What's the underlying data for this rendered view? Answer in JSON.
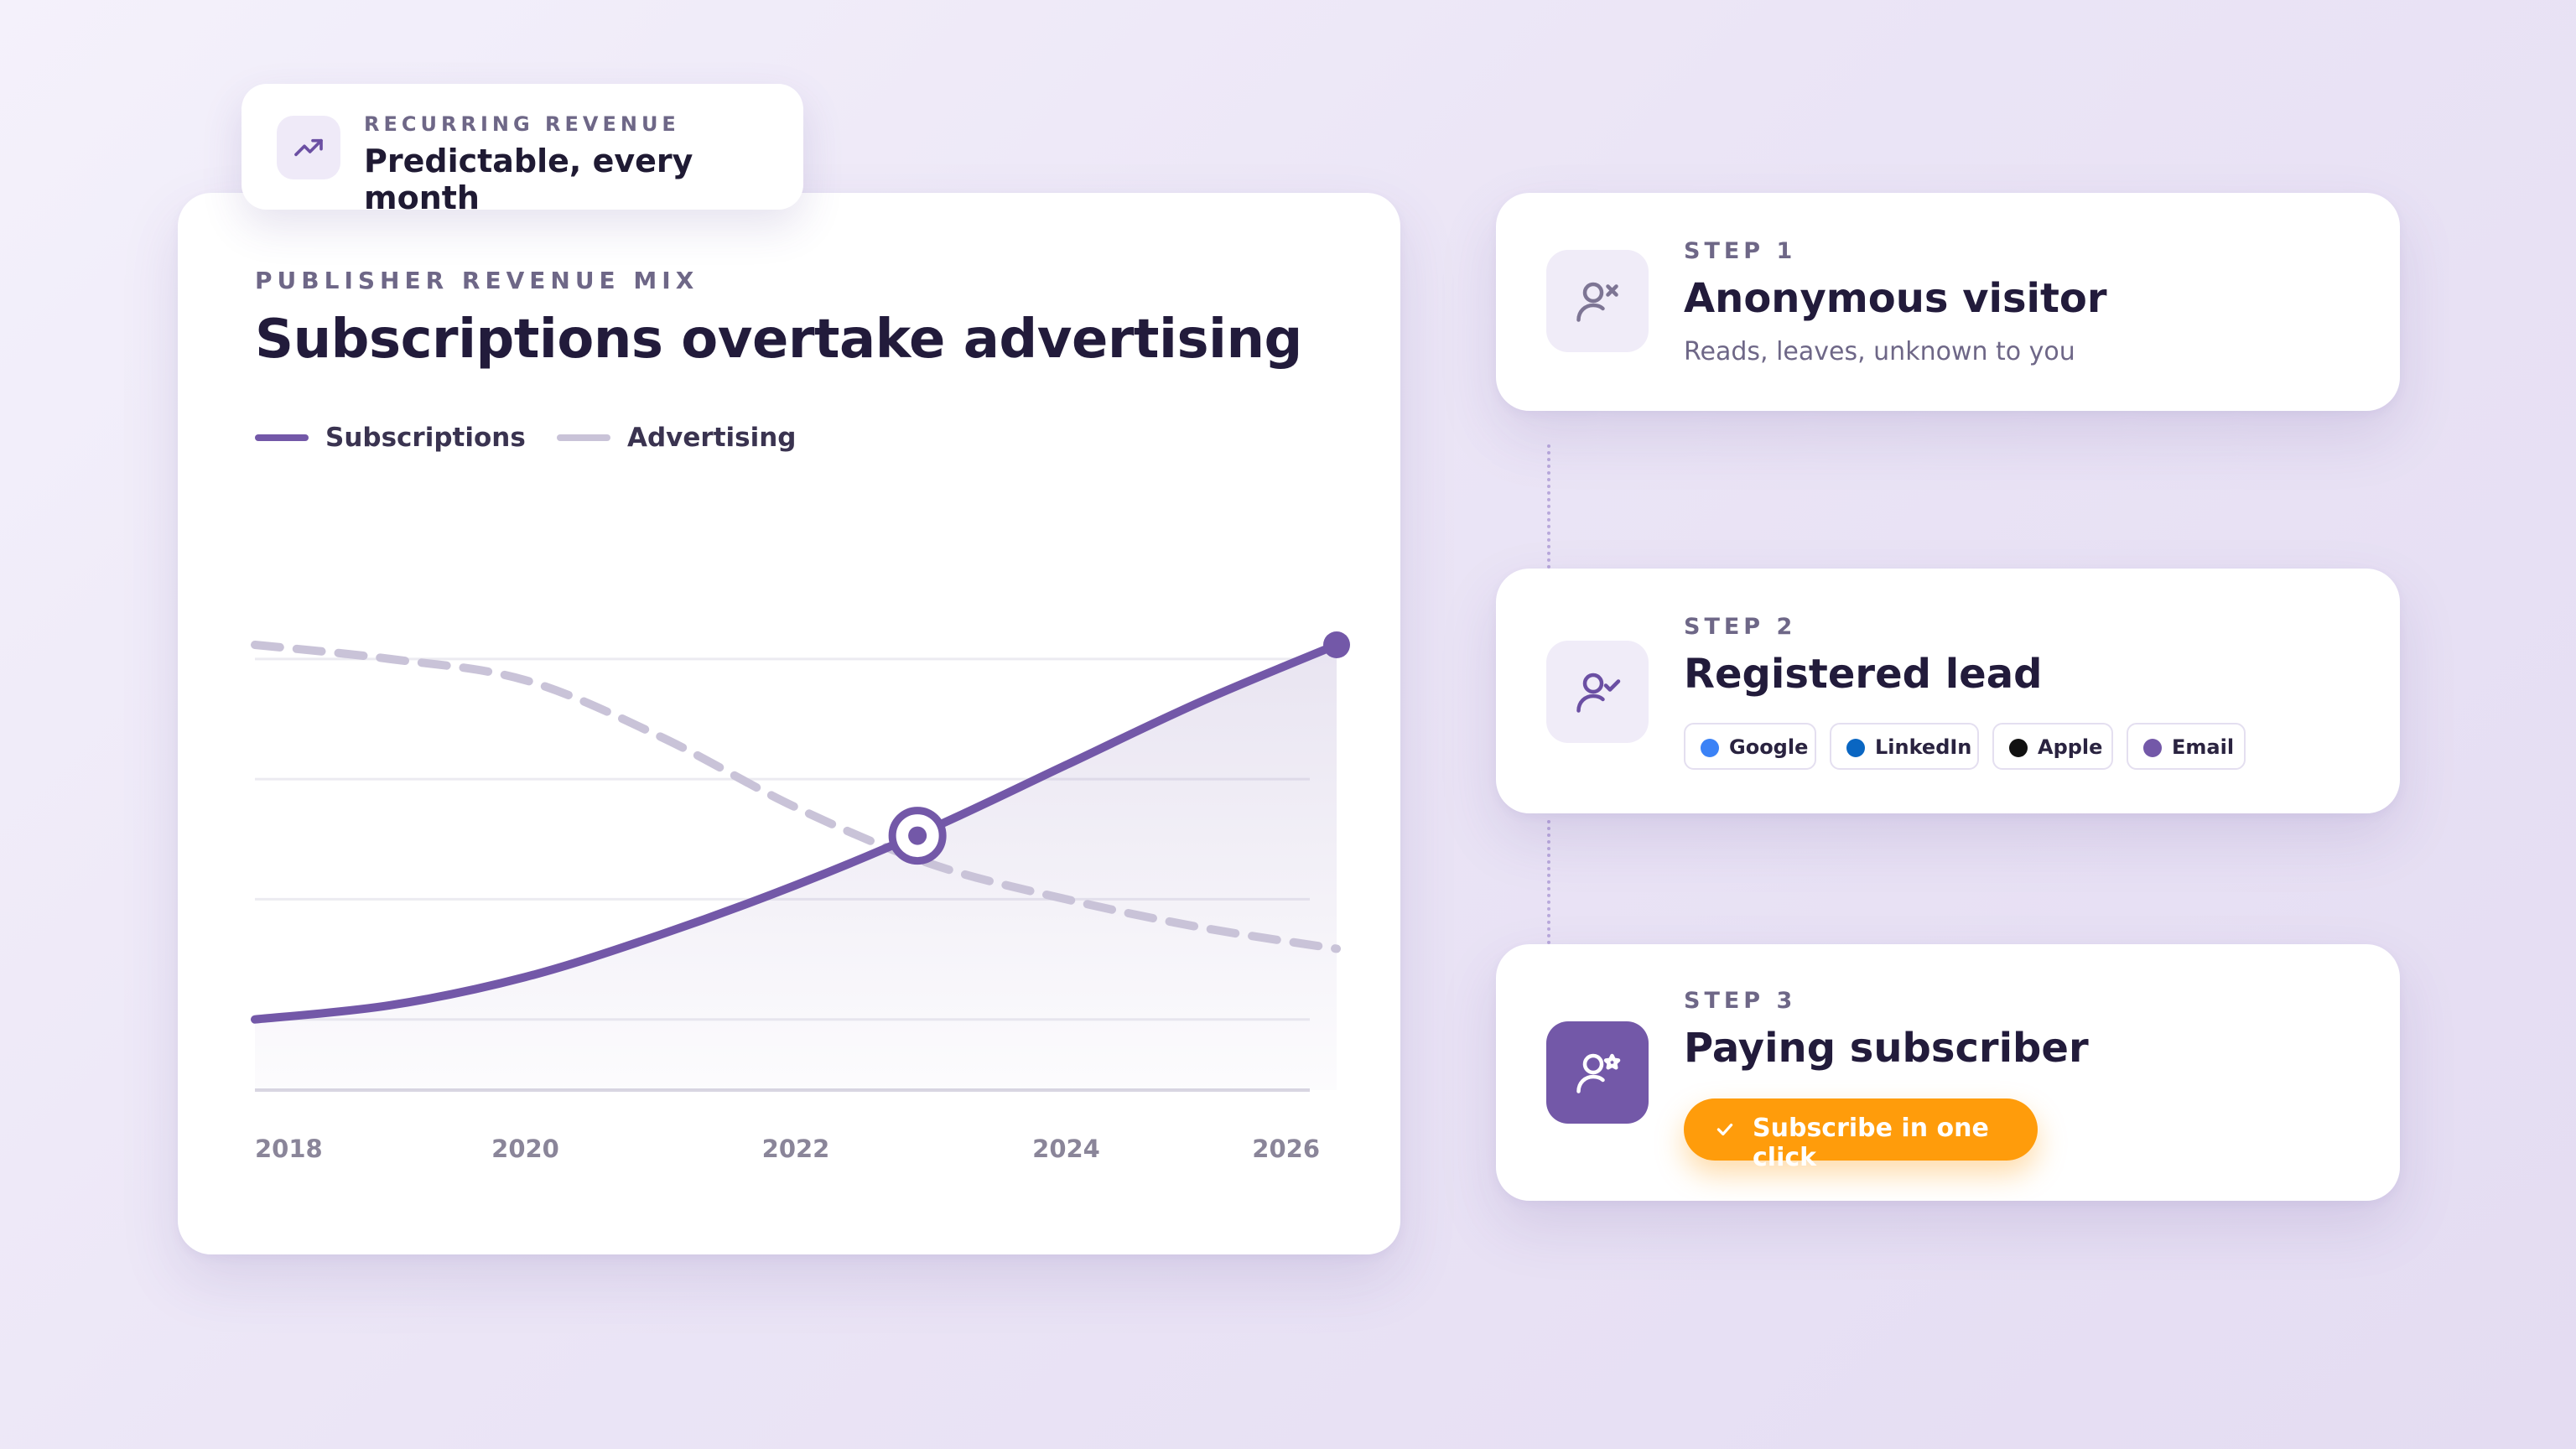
{
  "badge": {
    "icon": "trending-up-icon",
    "eyebrow": "RECURRING REVENUE",
    "title": "Predictable, every month"
  },
  "chart": {
    "eyebrow": "PUBLISHER REVENUE MIX",
    "title": "Subscriptions overtake advertising",
    "legend": [
      {
        "label": "Subscriptions",
        "color": "#7358a8"
      },
      {
        "label": "Advertising",
        "color": "#c9c3d8"
      }
    ]
  },
  "chart_data": {
    "type": "line",
    "title": "Subscriptions overtake advertising",
    "x": [
      2018,
      2019,
      2020,
      2021,
      2022,
      2023,
      2024,
      2025,
      2026
    ],
    "x_ticks": [
      "2018",
      "2020",
      "2022",
      "2024",
      "2026"
    ],
    "xlim": [
      2018,
      2026
    ],
    "ylim": [
      0,
      70
    ],
    "grid": true,
    "legend_position": "top-left",
    "series": [
      {
        "name": "Subscriptions",
        "color": "#7358a8",
        "style": "solid",
        "area": true,
        "values": [
          10,
          12,
          16,
          22,
          29,
          37,
          46,
          55,
          63
        ]
      },
      {
        "name": "Advertising",
        "color": "#c9c3d8",
        "style": "dashed",
        "values": [
          63,
          61,
          58,
          50,
          40,
          32,
          27,
          23,
          20
        ]
      }
    ],
    "markers": [
      {
        "x": 2022.9,
        "y": 36,
        "type": "ring"
      },
      {
        "x": 2026,
        "y": 63,
        "type": "dot"
      }
    ]
  },
  "steps": [
    {
      "eyebrow": "STEP 1",
      "title": "Anonymous visitor",
      "subtitle": "Reads, leaves, unknown to you",
      "icon": "user-question-icon"
    },
    {
      "eyebrow": "STEP 2",
      "title": "Registered lead",
      "icon": "user-check-icon",
      "providers": [
        {
          "label": "Google",
          "color": "#3b82f6"
        },
        {
          "label": "LinkedIn",
          "color": "#0a66c2"
        },
        {
          "label": "Apple",
          "color": "#111111"
        },
        {
          "label": "Email",
          "color": "#7358a8"
        }
      ]
    },
    {
      "eyebrow": "STEP 3",
      "title": "Paying subscriber",
      "icon": "user-star-icon",
      "cta_label": "Subscribe in one click",
      "cta_icon": "checkmark-icon",
      "cta_color": "#ff9c0b"
    }
  ]
}
